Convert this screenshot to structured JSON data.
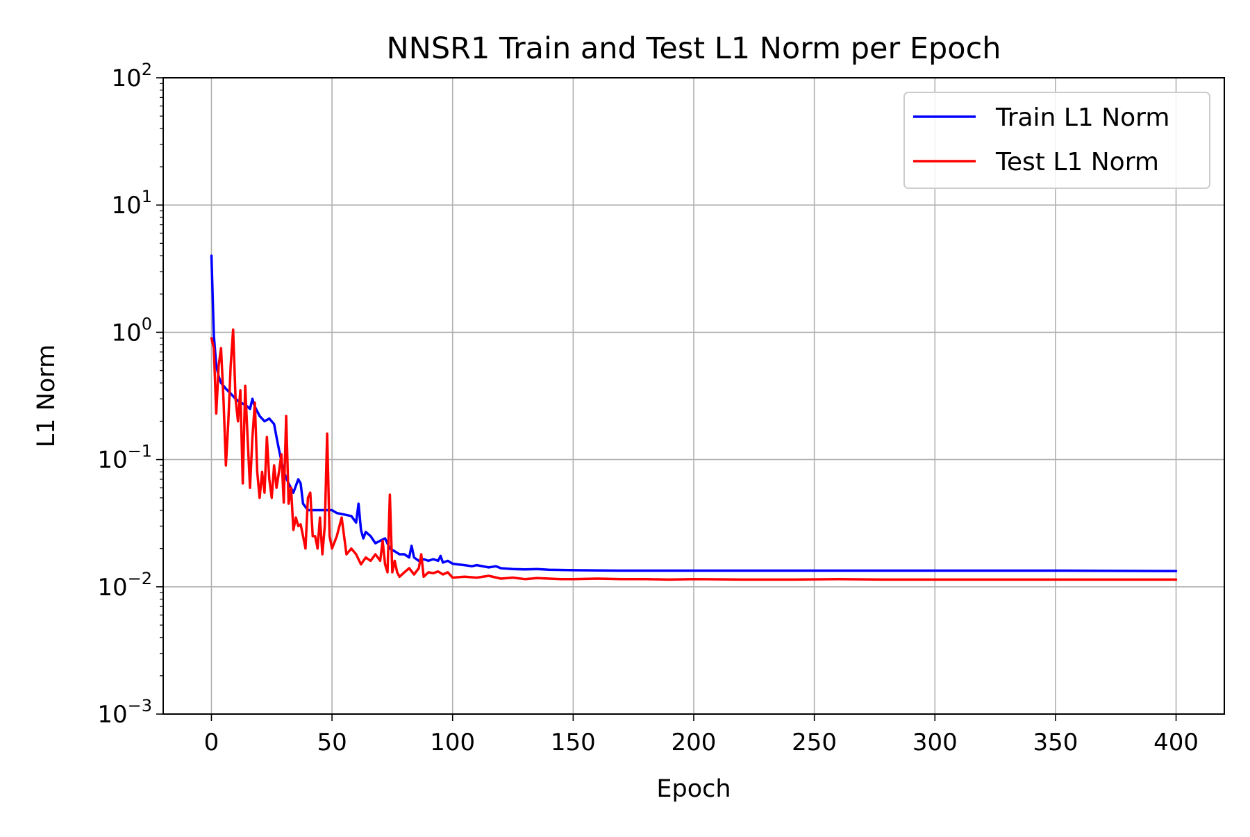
{
  "chart_data": {
    "type": "line",
    "title": "NNSR1 Train and Test L1 Norm per Epoch",
    "xlabel": "Epoch",
    "ylabel": "L1 Norm",
    "xlim": [
      -20,
      420
    ],
    "ylim": [
      0.001,
      100
    ],
    "yscale": "log",
    "grid": true,
    "legend_position": "top-right",
    "x_ticks": [
      0,
      50,
      100,
      150,
      200,
      250,
      300,
      350,
      400
    ],
    "y_ticks": [
      {
        "value": 0.001,
        "base": "10",
        "exp": "−3"
      },
      {
        "value": 0.01,
        "base": "10",
        "exp": "−2"
      },
      {
        "value": 0.1,
        "base": "10",
        "exp": "−1"
      },
      {
        "value": 1,
        "base": "10",
        "exp": "0"
      },
      {
        "value": 10,
        "base": "10",
        "exp": "1"
      },
      {
        "value": 100,
        "base": "10",
        "exp": "2"
      }
    ],
    "series": [
      {
        "name": "Train L1 Norm",
        "color": "#0000ff",
        "x": [
          0,
          1,
          2,
          3,
          4,
          5,
          6,
          8,
          10,
          12,
          14,
          16,
          17,
          18,
          20,
          22,
          24,
          26,
          27,
          28,
          30,
          32,
          34,
          36,
          37,
          38,
          40,
          45,
          50,
          52,
          55,
          58,
          60,
          61,
          62,
          63,
          64,
          66,
          68,
          70,
          72,
          74,
          76,
          78,
          80,
          82,
          83,
          84,
          86,
          88,
          90,
          92,
          94,
          95,
          96,
          98,
          100,
          102,
          105,
          108,
          110,
          115,
          118,
          120,
          125,
          130,
          135,
          140,
          150,
          170,
          200,
          250,
          300,
          350,
          400
        ],
        "y": [
          4.0,
          0.95,
          0.55,
          0.45,
          0.4,
          0.38,
          0.36,
          0.33,
          0.3,
          0.28,
          0.27,
          0.25,
          0.3,
          0.26,
          0.22,
          0.2,
          0.21,
          0.19,
          0.15,
          0.12,
          0.08,
          0.065,
          0.055,
          0.07,
          0.065,
          0.045,
          0.04,
          0.04,
          0.04,
          0.038,
          0.037,
          0.036,
          0.032,
          0.045,
          0.028,
          0.024,
          0.027,
          0.025,
          0.022,
          0.023,
          0.024,
          0.02,
          0.019,
          0.018,
          0.018,
          0.017,
          0.021,
          0.017,
          0.016,
          0.0165,
          0.016,
          0.0165,
          0.016,
          0.0175,
          0.0155,
          0.016,
          0.0152,
          0.015,
          0.0148,
          0.0145,
          0.0148,
          0.0142,
          0.0145,
          0.014,
          0.0138,
          0.0137,
          0.0138,
          0.0136,
          0.0135,
          0.0134,
          0.0134,
          0.0134,
          0.0134,
          0.0134,
          0.0133
        ]
      },
      {
        "name": "Test L1 Norm",
        "color": "#ff0000",
        "x": [
          0,
          1,
          2,
          3,
          4,
          5,
          6,
          7,
          8,
          9,
          10,
          11,
          12,
          13,
          14,
          15,
          16,
          17,
          18,
          19,
          20,
          21,
          22,
          23,
          24,
          25,
          26,
          27,
          28,
          29,
          30,
          31,
          32,
          33,
          34,
          35,
          36,
          37,
          38,
          39,
          40,
          41,
          42,
          43,
          44,
          45,
          46,
          47,
          48,
          49,
          50,
          52,
          54,
          56,
          58,
          60,
          62,
          64,
          66,
          68,
          70,
          71,
          72,
          73,
          74,
          75,
          76,
          77,
          78,
          80,
          82,
          84,
          86,
          87,
          88,
          90,
          92,
          94,
          96,
          98,
          100,
          105,
          110,
          115,
          120,
          125,
          130,
          135,
          140,
          145,
          150,
          160,
          170,
          180,
          190,
          200,
          220,
          240,
          260,
          280,
          300,
          320,
          340,
          360,
          380,
          400
        ],
        "y": [
          0.9,
          0.75,
          0.23,
          0.55,
          0.75,
          0.3,
          0.09,
          0.2,
          0.55,
          1.05,
          0.3,
          0.2,
          0.35,
          0.065,
          0.38,
          0.15,
          0.06,
          0.15,
          0.28,
          0.08,
          0.05,
          0.08,
          0.055,
          0.15,
          0.07,
          0.05,
          0.09,
          0.06,
          0.08,
          0.11,
          0.046,
          0.22,
          0.045,
          0.06,
          0.028,
          0.035,
          0.03,
          0.031,
          0.025,
          0.02,
          0.05,
          0.055,
          0.025,
          0.025,
          0.02,
          0.035,
          0.018,
          0.03,
          0.16,
          0.025,
          0.02,
          0.025,
          0.035,
          0.018,
          0.02,
          0.018,
          0.015,
          0.017,
          0.016,
          0.018,
          0.016,
          0.023,
          0.015,
          0.013,
          0.053,
          0.013,
          0.016,
          0.013,
          0.012,
          0.013,
          0.014,
          0.0125,
          0.014,
          0.018,
          0.012,
          0.013,
          0.0128,
          0.0132,
          0.0125,
          0.013,
          0.0118,
          0.012,
          0.0118,
          0.0122,
          0.0116,
          0.0118,
          0.0115,
          0.0117,
          0.0116,
          0.0115,
          0.0115,
          0.0116,
          0.0115,
          0.0115,
          0.0114,
          0.0115,
          0.0114,
          0.0114,
          0.0115,
          0.0114,
          0.0114,
          0.0114,
          0.0114,
          0.0114,
          0.0114,
          0.0114
        ]
      }
    ]
  }
}
